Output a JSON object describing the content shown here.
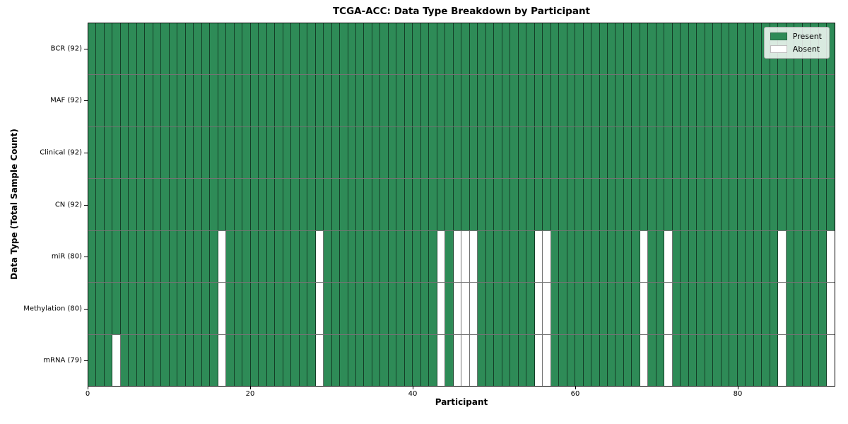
{
  "title": "TCGA-ACC: Data Type Breakdown by Participant",
  "chart_data": {
    "type": "heatmap",
    "title": "TCGA-ACC: Data Type Breakdown by Participant",
    "xlabel": "Participant",
    "ylabel": "Data Type (Total Sample Count)",
    "n_participants": 92,
    "x_ticks": [
      0,
      20,
      40,
      60,
      80
    ],
    "x_range": [
      0,
      92
    ],
    "grid": true,
    "cell_values": "1 = Present (green), 0 = Absent (white)",
    "rows": [
      {
        "name": "BCR",
        "label": "BCR (92)",
        "present_count": 92,
        "absent_participants": []
      },
      {
        "name": "MAF",
        "label": "MAF (92)",
        "present_count": 92,
        "absent_participants": []
      },
      {
        "name": "Clinical",
        "label": "Clinical (92)",
        "present_count": 92,
        "absent_participants": []
      },
      {
        "name": "CN",
        "label": "CN (92)",
        "present_count": 92,
        "absent_participants": []
      },
      {
        "name": "miR",
        "label": "miR (80)",
        "present_count": 80,
        "absent_participants": [
          16,
          28,
          43,
          45,
          46,
          47,
          55,
          56,
          68,
          71,
          85,
          91
        ]
      },
      {
        "name": "Methylation",
        "label": "Methylation (80)",
        "present_count": 80,
        "absent_participants": [
          16,
          28,
          43,
          45,
          46,
          47,
          55,
          56,
          68,
          71,
          85,
          91
        ]
      },
      {
        "name": "mRNA",
        "label": "mRNA (79)",
        "present_count": 79,
        "absent_participants": [
          3,
          16,
          28,
          43,
          45,
          46,
          47,
          55,
          56,
          68,
          71,
          85,
          91
        ]
      }
    ],
    "legend": {
      "position": "upper right",
      "entries": [
        {
          "label": "Present",
          "color": "#2e8b57"
        },
        {
          "label": "Absent",
          "color": "#ffffff"
        }
      ]
    },
    "colors": {
      "present": "#2e8b57",
      "absent": "#ffffff",
      "cell_edge": "#000000",
      "plot_border": "#000000"
    }
  }
}
